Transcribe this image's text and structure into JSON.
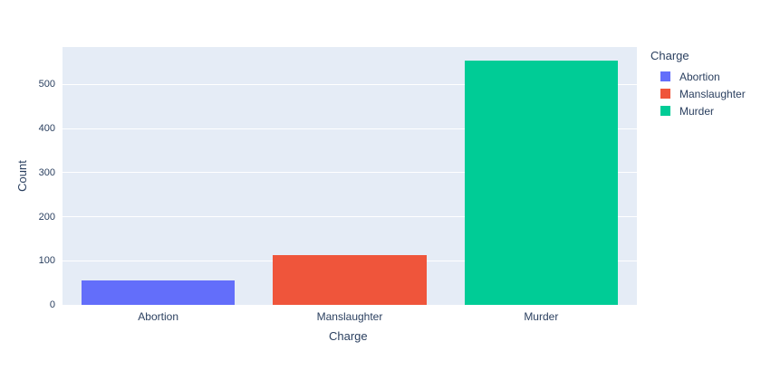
{
  "chart_data": {
    "type": "bar",
    "categories": [
      "Abortion",
      "Manslaughter",
      "Murder"
    ],
    "values": [
      55,
      112,
      555
    ],
    "series_colors": [
      "#636EFA",
      "#EF553B",
      "#00CC96"
    ],
    "title": "",
    "xlabel": "Charge",
    "ylabel": "Count",
    "ylim": [
      0,
      585
    ],
    "yticks": [
      0,
      100,
      200,
      300,
      400,
      500
    ],
    "grid": true,
    "bar_width_fraction": 0.8,
    "legend": {
      "title": "Charge",
      "position": "right",
      "entries": [
        {
          "label": "Abortion",
          "color": "#636EFA"
        },
        {
          "label": "Manslaughter",
          "color": "#EF553B"
        },
        {
          "label": "Murder",
          "color": "#00CC96"
        }
      ]
    },
    "colors": {
      "plot_background": "#E5ECF6",
      "gridline": "#FFFFFF",
      "text": "#2A3F5F"
    }
  }
}
